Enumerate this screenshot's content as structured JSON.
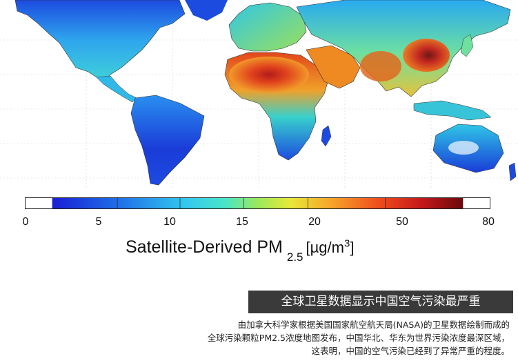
{
  "map": {
    "legend_ticks": [
      "0",
      "5",
      "10",
      "15",
      "20",
      "50",
      "80"
    ],
    "colors": {
      "low": "#1a3cd8",
      "mid_low": "#28a9f0",
      "mid": "#3ee4d6",
      "mid_high": "#e6e63a",
      "high": "#f07a1e",
      "very_high": "#c8201a",
      "extreme": "#6e0d0d",
      "ocean": "#ffffff",
      "gridline": "#cccccc"
    }
  },
  "colorbar": {
    "title_main": "Satellite-Derived PM",
    "title_sub": "2.5",
    "title_unit_prefix": "[µg/m",
    "title_unit_sup": "3",
    "title_unit_suffix": "]"
  },
  "caption": {
    "headline": "全球卫星数据显示中国空气污染最严重",
    "lines": [
      "由加拿大科学家根据美国国家航空航天局(NASA)的卫星数据绘制而成的",
      "全球污染颗粒PM2.5浓度地图发布，中国华北、华东为世界污染浓度最深区域，",
      "这表明，中国的空气污染已经到了异常严重的程度。"
    ]
  }
}
